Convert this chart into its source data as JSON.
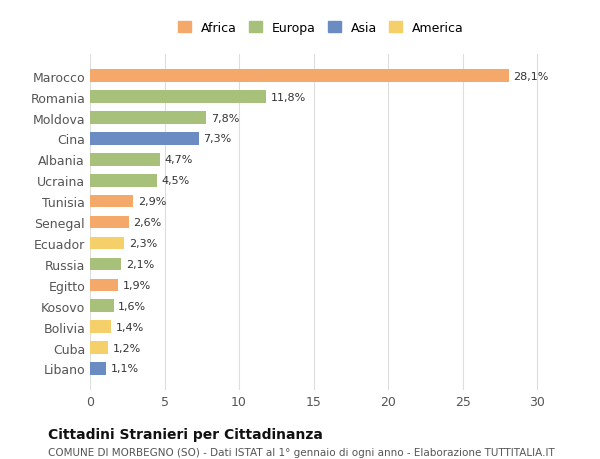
{
  "countries": [
    "Marocco",
    "Romania",
    "Moldova",
    "Cina",
    "Albania",
    "Ucraina",
    "Tunisia",
    "Senegal",
    "Ecuador",
    "Russia",
    "Egitto",
    "Kosovo",
    "Bolivia",
    "Cuba",
    "Libano"
  ],
  "values": [
    28.1,
    11.8,
    7.8,
    7.3,
    4.7,
    4.5,
    2.9,
    2.6,
    2.3,
    2.1,
    1.9,
    1.6,
    1.4,
    1.2,
    1.1
  ],
  "labels": [
    "28,1%",
    "11,8%",
    "7,8%",
    "7,3%",
    "4,7%",
    "4,5%",
    "2,9%",
    "2,6%",
    "2,3%",
    "2,1%",
    "1,9%",
    "1,6%",
    "1,4%",
    "1,2%",
    "1,1%"
  ],
  "colors": [
    "#F4A96A",
    "#A8C17A",
    "#A8C17A",
    "#6B8CC2",
    "#A8C17A",
    "#A8C17A",
    "#F4A96A",
    "#F4A96A",
    "#F5D06A",
    "#A8C17A",
    "#F4A96A",
    "#A8C17A",
    "#F5D06A",
    "#F5D06A",
    "#6B8CC2"
  ],
  "continent_colors": {
    "Africa": "#F4A96A",
    "Europa": "#A8C17A",
    "Asia": "#6B8CC2",
    "America": "#F5D06A"
  },
  "legend_labels": [
    "Africa",
    "Europa",
    "Asia",
    "America"
  ],
  "title": "Cittadini Stranieri per Cittadinanza",
  "subtitle": "COMUNE DI MORBEGNO (SO) - Dati ISTAT al 1° gennaio di ogni anno - Elaborazione TUTTITALIA.IT",
  "xlim": [
    0,
    31
  ],
  "xticks": [
    0,
    5,
    10,
    15,
    20,
    25,
    30
  ],
  "bar_height": 0.6,
  "background_color": "#ffffff",
  "grid_color": "#dddddd"
}
